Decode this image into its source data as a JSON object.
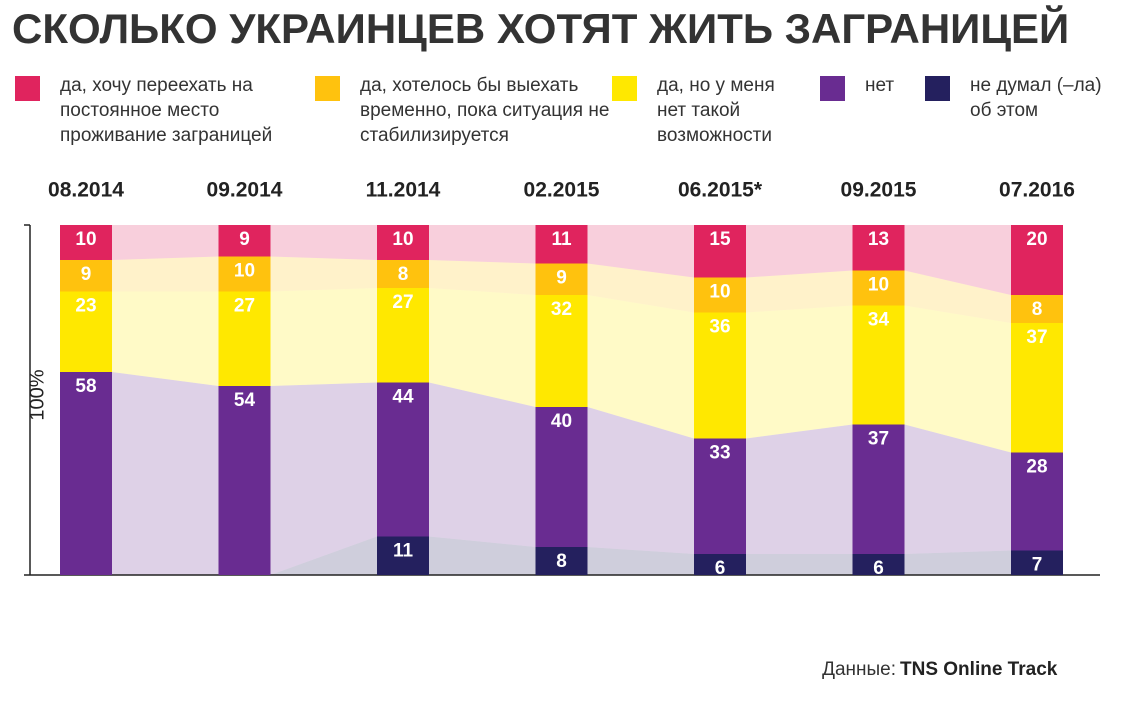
{
  "chart_data": {
    "type": "stacked-bar",
    "title": "СКОЛЬКО УКРАИНЦЕВ ХОТЯТ ЖИТЬ ЗАГРАНИЦЕЙ",
    "ylabel": "100%",
    "categories": [
      "08.2014",
      "09.2014",
      "11.2014",
      "02.2015",
      "06.2015*",
      "09.2015",
      "07.2016"
    ],
    "series": [
      {
        "name": "да, хочу переехать на постоянное место проживание заграницей",
        "color": "#e0245e",
        "values": [
          10,
          9,
          10,
          11,
          15,
          13,
          20
        ]
      },
      {
        "name": "да, хотелось бы выехать временно, пока ситуация не стабилизируется",
        "color": "#ffc20e",
        "values": [
          9,
          10,
          8,
          9,
          10,
          10,
          8
        ]
      },
      {
        "name": "да, но у меня нет такой возможности",
        "color": "#ffe800",
        "values": [
          23,
          27,
          27,
          32,
          36,
          34,
          37
        ]
      },
      {
        "name": "нет",
        "color": "#692c91",
        "values": [
          58,
          54,
          44,
          40,
          33,
          37,
          28
        ]
      },
      {
        "name": "не думал (–ла) об этом",
        "color": "#24205e",
        "values": [
          null,
          null,
          11,
          8,
          6,
          6,
          7
        ]
      }
    ],
    "ylim": [
      0,
      100
    ],
    "source_label": "Данные:",
    "source": "TNS Online Track"
  }
}
